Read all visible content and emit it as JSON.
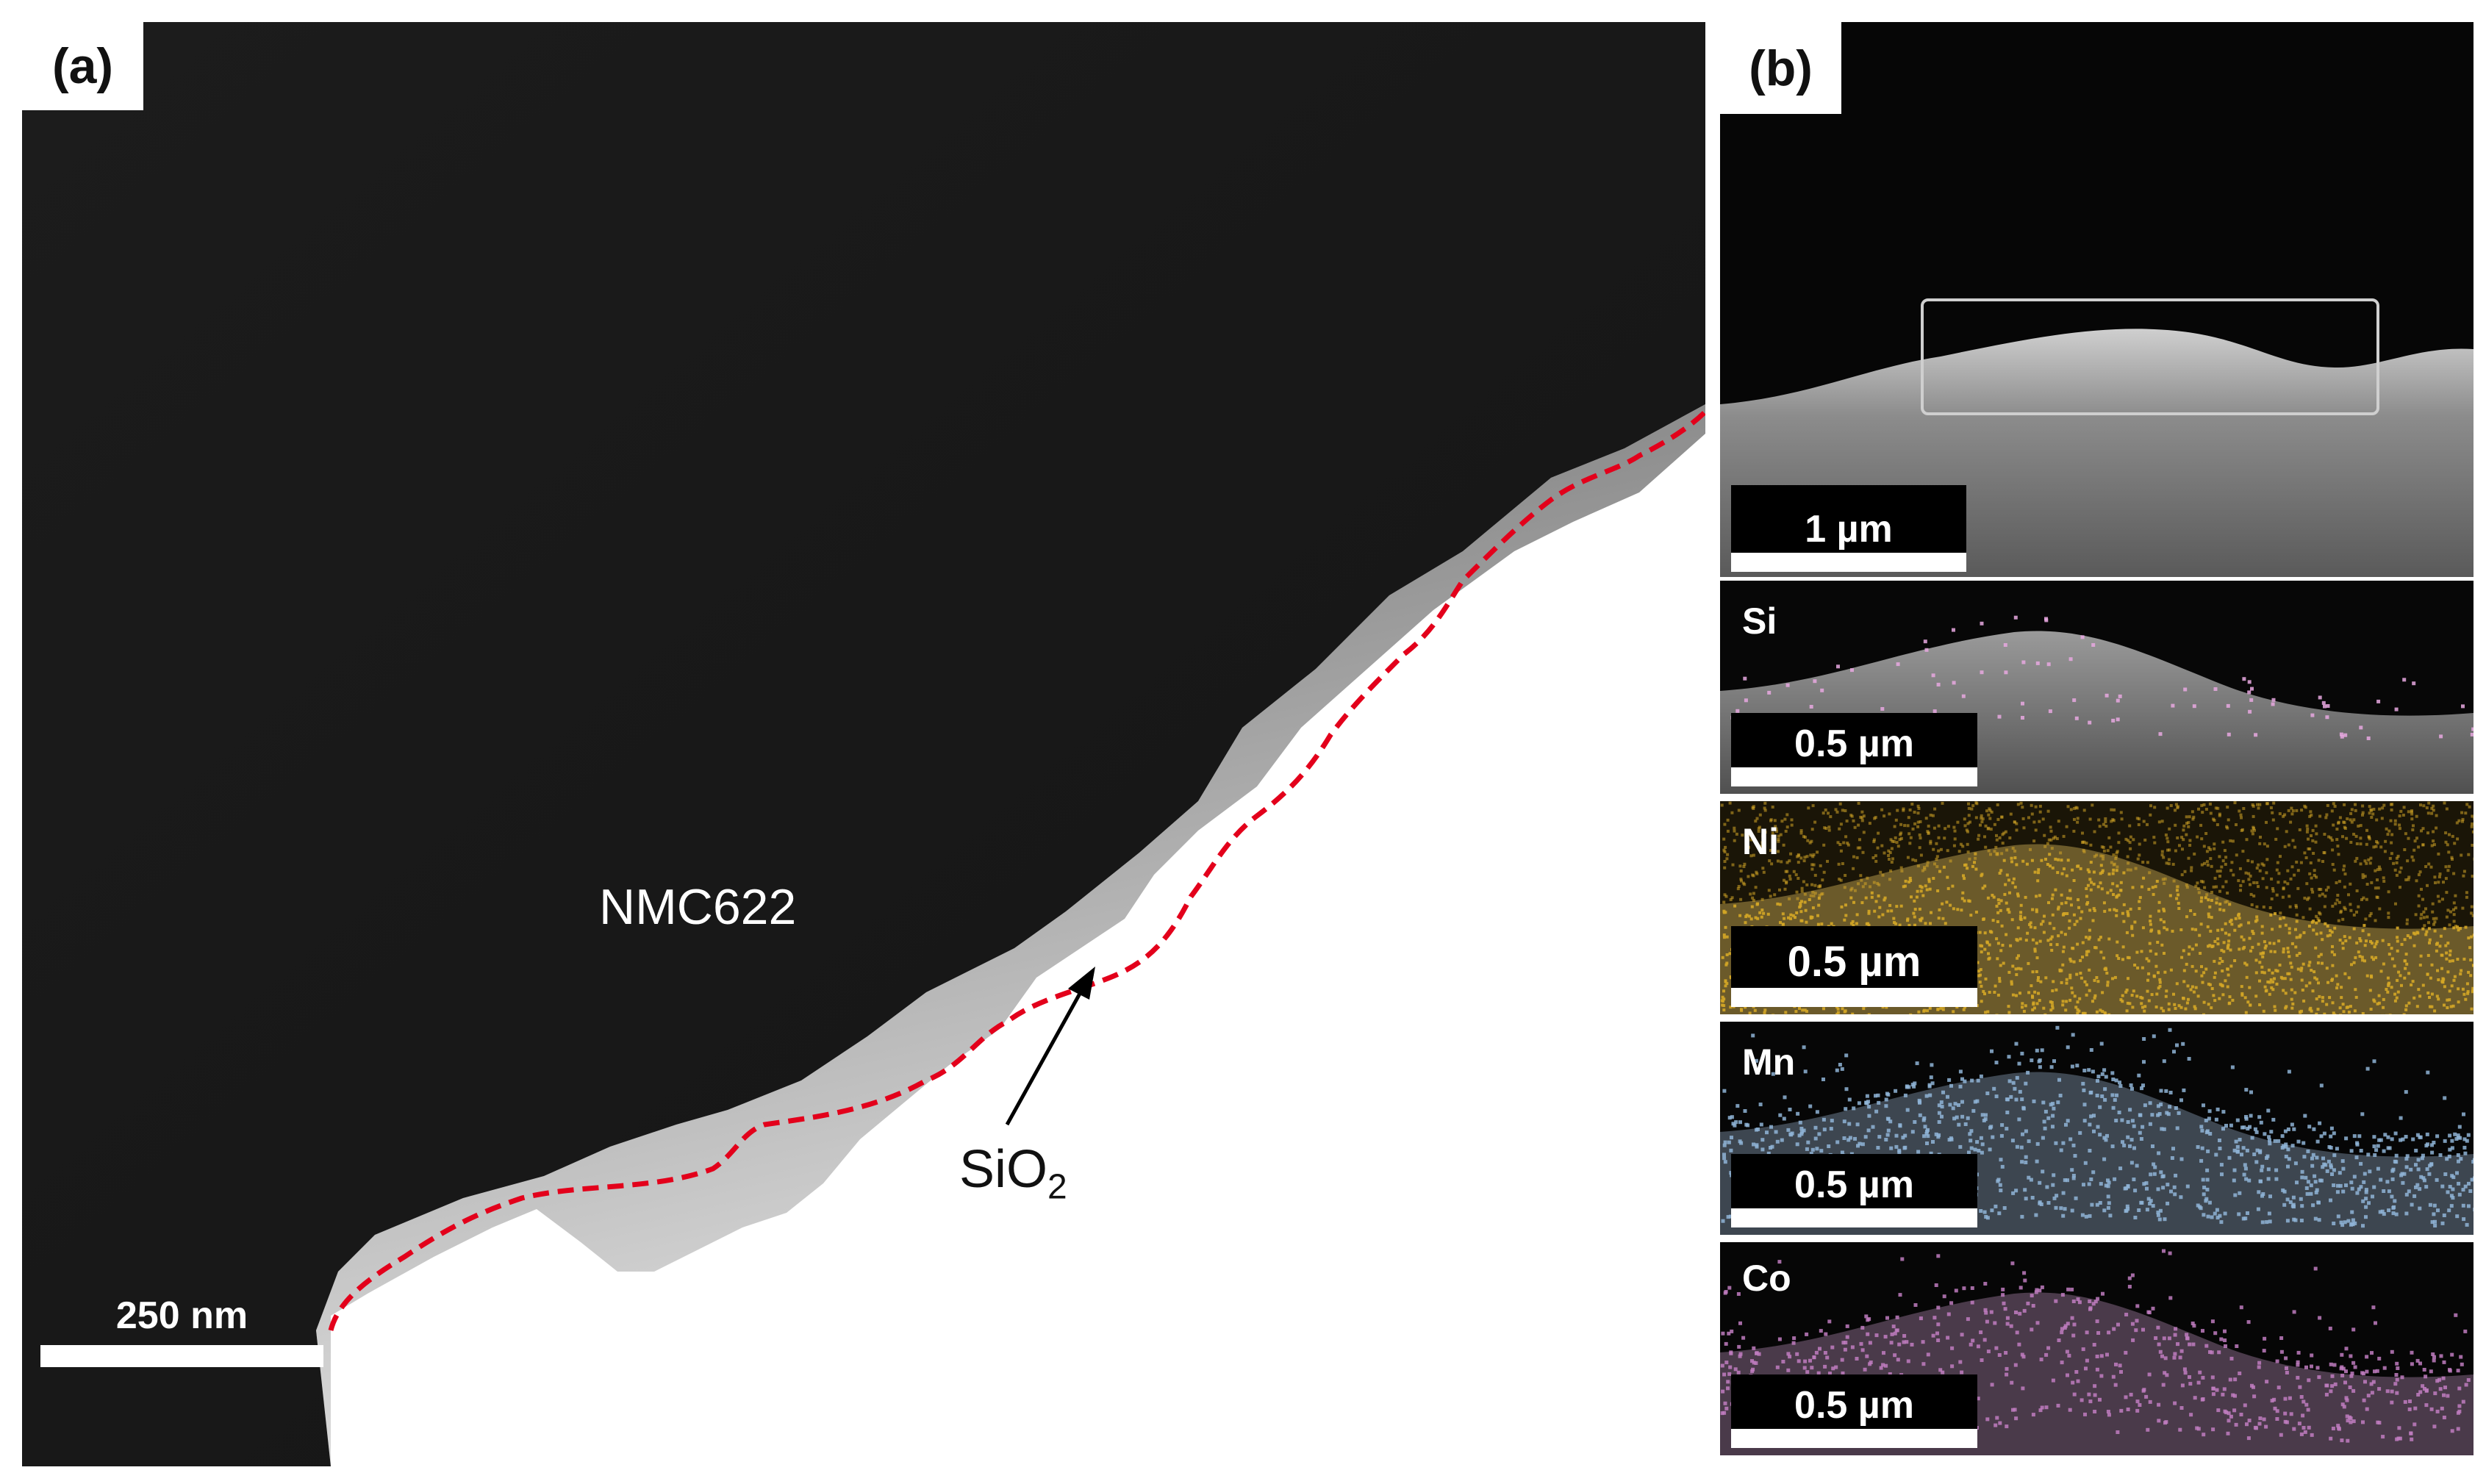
{
  "panel_a": {
    "letter": "(a)",
    "material_label": "NMC622",
    "coating_label": "SiO",
    "coating_subscript": "2",
    "scale_bar": "250 nm"
  },
  "panel_b": {
    "letter": "(b)",
    "overview_scale": "1 µm",
    "maps": [
      {
        "element": "Si",
        "scale": "0.5 µm",
        "color": "#e8a8e0"
      },
      {
        "element": "Ni",
        "scale": "0.5 µm",
        "color": "#d4a626"
      },
      {
        "element": "Mn",
        "scale": "0.5 µm",
        "color": "#8fb4d6"
      },
      {
        "element": "Co",
        "scale": "0.5 µm",
        "color": "#c07cc0"
      }
    ]
  },
  "colors": {
    "boundary_line": "#e3001b",
    "background_dark": "#151515"
  }
}
